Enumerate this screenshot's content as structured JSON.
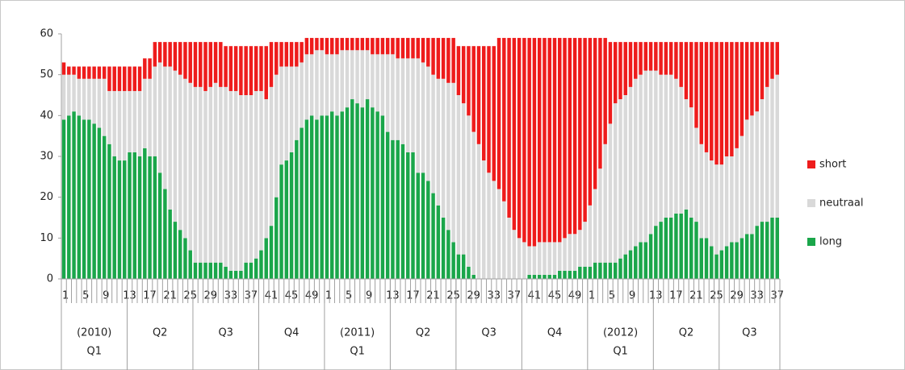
{
  "chart_data": {
    "type": "stacked-bar",
    "categories": [
      1,
      null,
      null,
      null,
      5,
      null,
      null,
      null,
      9,
      null,
      null,
      null,
      13,
      null,
      null,
      null,
      17,
      null,
      null,
      null,
      21,
      null,
      null,
      null,
      25,
      null,
      null,
      null,
      29,
      null,
      null,
      null,
      33,
      null,
      null,
      null,
      37,
      null,
      null,
      null,
      41,
      null,
      null,
      null,
      45,
      null,
      null,
      null,
      49,
      null,
      null,
      null,
      1,
      null,
      null,
      null,
      5,
      null,
      null,
      null,
      9,
      null,
      null,
      null,
      13,
      null,
      null,
      null,
      17,
      null,
      null,
      null,
      21,
      null,
      null,
      null,
      25,
      null,
      null,
      null,
      29,
      null,
      null,
      null,
      33,
      null,
      null,
      null,
      37,
      null,
      null,
      null,
      41,
      null,
      null,
      null,
      45,
      null,
      null,
      null,
      49,
      null,
      null,
      null,
      1,
      null,
      null,
      null,
      5,
      null,
      null,
      null,
      9,
      null,
      null,
      null,
      13,
      null,
      null,
      null,
      17,
      null,
      null,
      null,
      21,
      null,
      null,
      null,
      25,
      null,
      null,
      null,
      29,
      null,
      null,
      null,
      33,
      null,
      null,
      null,
      37,
      null
    ],
    "groups": [
      {
        "year": "(2010)",
        "quarter": "Q1",
        "size": 13
      },
      {
        "quarter": "Q2",
        "size": 13
      },
      {
        "quarter": "Q3",
        "size": 13
      },
      {
        "quarter": "Q4",
        "size": 13
      },
      {
        "year": "(2011)",
        "quarter": "Q1",
        "size": 13
      },
      {
        "quarter": "Q2",
        "size": 13
      },
      {
        "quarter": "Q3",
        "size": 13
      },
      {
        "quarter": "Q4",
        "size": 13
      },
      {
        "year": "(2012)",
        "quarter": "Q1",
        "size": 13
      },
      {
        "quarter": "Q2",
        "size": 13
      },
      {
        "quarter": "Q3",
        "size": 12
      }
    ],
    "series": [
      {
        "name": "long",
        "color": "#1aa64a",
        "values": [
          39,
          40,
          41,
          40,
          39,
          39,
          38,
          37,
          35,
          33,
          30,
          29,
          29,
          31,
          31,
          30,
          32,
          30,
          30,
          26,
          22,
          17,
          14,
          12,
          10,
          7,
          4,
          4,
          4,
          4,
          4,
          4,
          3,
          2,
          2,
          2,
          4,
          4,
          5,
          7,
          10,
          13,
          20,
          28,
          29,
          31,
          34,
          37,
          39,
          40,
          39,
          40,
          40,
          41,
          40,
          41,
          42,
          44,
          43,
          42,
          44,
          42,
          41,
          40,
          36,
          34,
          34,
          33,
          31,
          31,
          26,
          26,
          24,
          21,
          18,
          15,
          12,
          9,
          6,
          6,
          3,
          1,
          0,
          0,
          0,
          0,
          0,
          0,
          0,
          0,
          0,
          0,
          1,
          1,
          1,
          1,
          1,
          1,
          2,
          2,
          2,
          2,
          3,
          3,
          3,
          4,
          4,
          4,
          4,
          4,
          5,
          6,
          7,
          8,
          9,
          9,
          11,
          13,
          14,
          15,
          15,
          16,
          16,
          17,
          15,
          14,
          10,
          10,
          8,
          6,
          7,
          8,
          9,
          9,
          10,
          11,
          11,
          13,
          14,
          14,
          15,
          15
        ]
      },
      {
        "name": "neutraal",
        "color": "#d9d9d9",
        "values": [
          11,
          10,
          9,
          9,
          10,
          10,
          11,
          12,
          14,
          13,
          16,
          17,
          17,
          15,
          15,
          16,
          17,
          19,
          22,
          27,
          30,
          35,
          37,
          38,
          39,
          41,
          43,
          43,
          42,
          43,
          44,
          43,
          44,
          44,
          44,
          43,
          41,
          41,
          41,
          39,
          34,
          34,
          30,
          24,
          23,
          21,
          18,
          16,
          16,
          15,
          17,
          16,
          15,
          14,
          15,
          15,
          14,
          12,
          13,
          14,
          12,
          13,
          14,
          15,
          19,
          21,
          20,
          21,
          23,
          23,
          28,
          27,
          28,
          29,
          31,
          34,
          36,
          39,
          39,
          37,
          37,
          35,
          33,
          29,
          26,
          24,
          22,
          19,
          15,
          12,
          10,
          9,
          7,
          7,
          8,
          8,
          8,
          8,
          7,
          8,
          9,
          9,
          9,
          11,
          15,
          18,
          23,
          29,
          34,
          39,
          39,
          39,
          40,
          41,
          41,
          42,
          40,
          38,
          36,
          35,
          35,
          33,
          31,
          27,
          27,
          23,
          23,
          21,
          21,
          22,
          21,
          22,
          21,
          23,
          25,
          28,
          29,
          28,
          30,
          33,
          34,
          35
        ]
      },
      {
        "name": "short",
        "color": "#ee1c1c",
        "values": [
          3,
          2,
          2,
          3,
          3,
          3,
          3,
          3,
          3,
          6,
          6,
          6,
          6,
          6,
          6,
          6,
          5,
          5,
          6,
          5,
          6,
          6,
          7,
          8,
          9,
          10,
          11,
          11,
          12,
          11,
          10,
          11,
          10,
          11,
          11,
          12,
          12,
          12,
          11,
          11,
          13,
          11,
          8,
          6,
          6,
          6,
          6,
          5,
          4,
          4,
          3,
          3,
          4,
          4,
          4,
          3,
          3,
          3,
          3,
          3,
          3,
          4,
          4,
          4,
          4,
          4,
          5,
          5,
          5,
          5,
          5,
          6,
          7,
          9,
          10,
          10,
          11,
          11,
          12,
          14,
          17,
          21,
          24,
          28,
          31,
          33,
          37,
          40,
          44,
          47,
          49,
          50,
          51,
          51,
          50,
          50,
          50,
          50,
          50,
          49,
          48,
          48,
          47,
          45,
          41,
          37,
          32,
          26,
          20,
          15,
          14,
          13,
          11,
          9,
          8,
          7,
          7,
          7,
          8,
          8,
          8,
          9,
          11,
          14,
          16,
          21,
          25,
          27,
          29,
          30,
          30,
          28,
          28,
          26,
          23,
          19,
          18,
          17,
          14,
          11,
          9,
          8
        ]
      }
    ],
    "ylim": [
      0,
      60
    ],
    "yticks": [
      0,
      10,
      20,
      30,
      40,
      50,
      60
    ],
    "grid": false,
    "legend": "right"
  }
}
